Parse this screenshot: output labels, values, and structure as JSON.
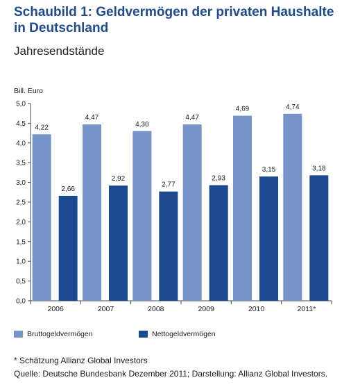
{
  "header": {
    "title_line1": "Schaubild 1: Geldvermögen der privaten Haushalte",
    "title_line2": "in Deutschland",
    "subtitle": "Jahresendstände"
  },
  "colors": {
    "brutto": "#7694c7",
    "netto": "#1b4a90",
    "title": "#1f4a8c"
  },
  "chart_data": {
    "type": "bar",
    "ylabel": "Bill. Euro",
    "xlabel": "",
    "ylim": [
      0,
      5
    ],
    "yticks": [
      "0,0",
      "0,5",
      "1,0",
      "1,5",
      "2,0",
      "2,5",
      "3,0",
      "3,5",
      "4,0",
      "4,5",
      "5,0"
    ],
    "categories": [
      "2006",
      "2007",
      "2008",
      "2009",
      "2010",
      "2011*"
    ],
    "series": [
      {
        "name": "Bruttogeldvermögen",
        "values": [
          4.22,
          4.47,
          4.3,
          4.47,
          4.69,
          4.74
        ],
        "labels": [
          "4,22",
          "4,47",
          "4,30",
          "4,47",
          "4,69",
          "4,74"
        ]
      },
      {
        "name": "Nettogeldvermögen",
        "values": [
          2.66,
          2.92,
          2.77,
          2.93,
          3.15,
          3.18
        ],
        "labels": [
          "2,66",
          "2,92",
          "2,77",
          "2,93",
          "3,15",
          "3,18"
        ]
      }
    ],
    "grid": false,
    "legend": "bottom-left"
  },
  "footnotes": {
    "note": "* Schätzung Allianz Global Investors",
    "source": "Quelle: Deutsche Bundesbank Dezember 2011; Darstellung: Allianz Global Investors."
  }
}
